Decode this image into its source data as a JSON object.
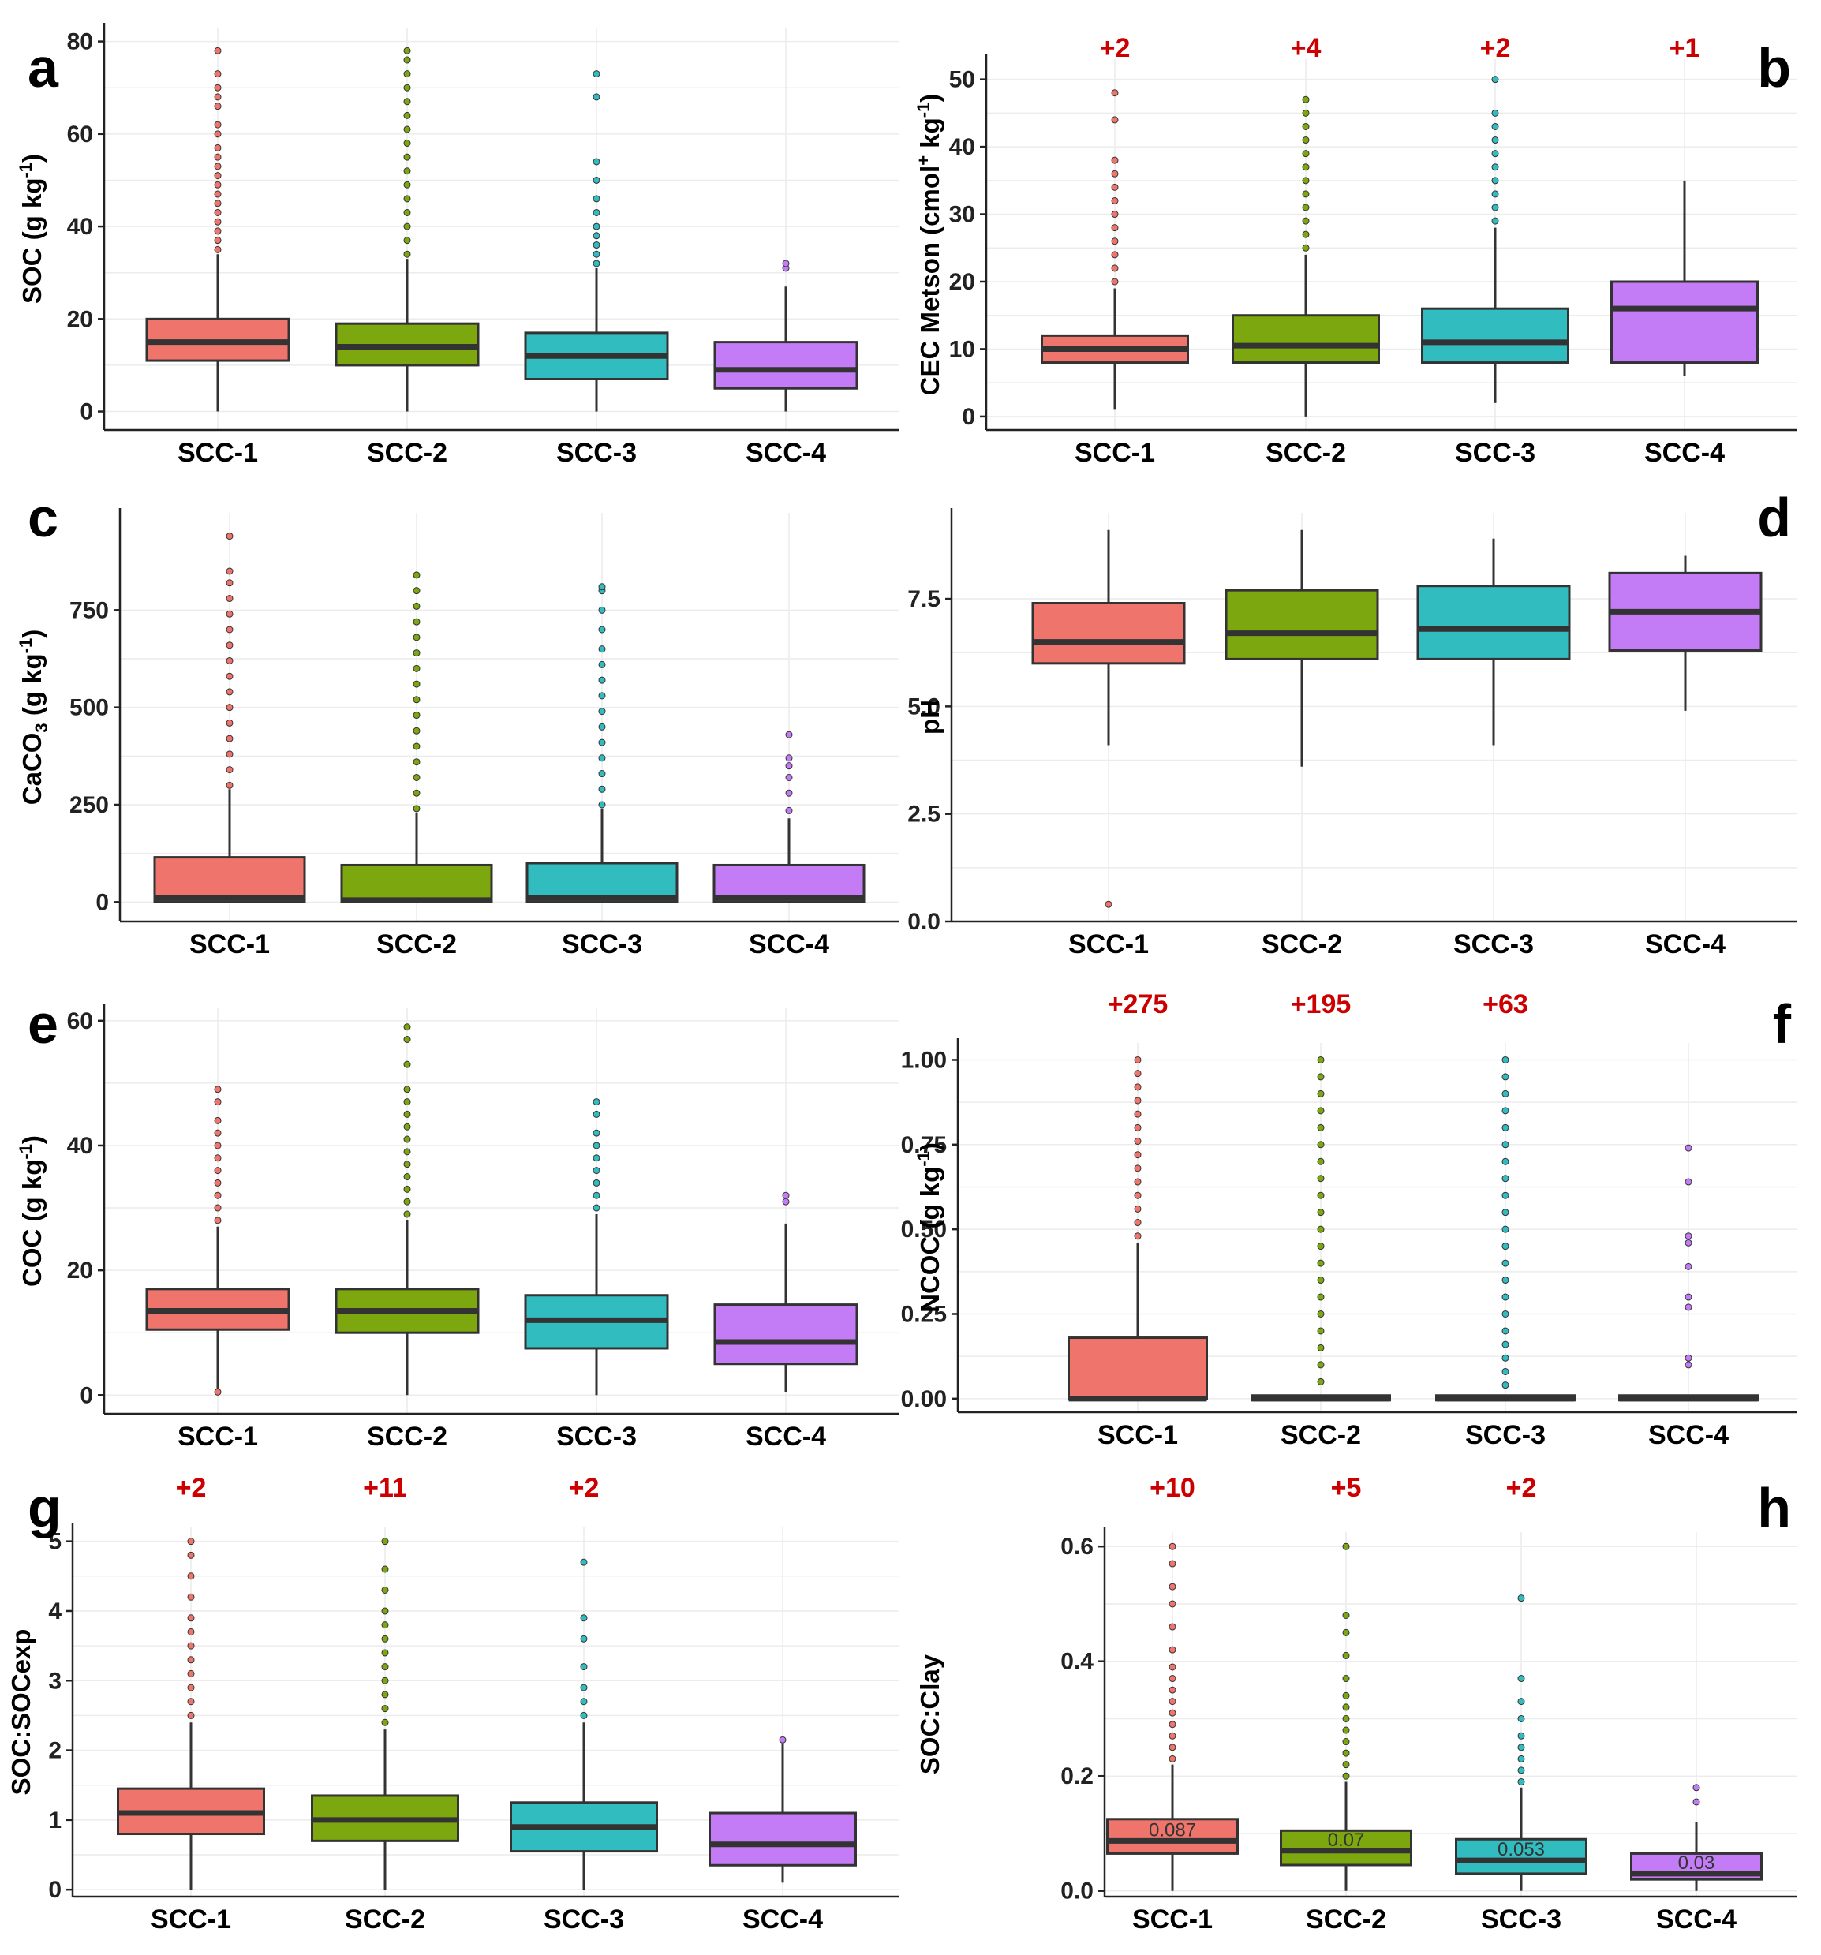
{
  "colors": {
    "SCC-1": "#ef746b",
    "SCC-2": "#7ca70f",
    "SCC-3": "#31bcc0",
    "SCC-4": "#c37cf6",
    "extra_label": "#cc0000"
  },
  "chart_data": [
    {
      "type": "box",
      "panel": "a",
      "ylabel": "SOC (g kg-1)",
      "ylabel_main": "SOC (g kg",
      "ylabel_sup": "-1",
      "ylabel_tail": ")",
      "ylim": [
        -4,
        83
      ],
      "yticks": [
        0,
        20,
        40,
        60,
        80
      ],
      "categories": [
        "SCC-1",
        "SCC-2",
        "SCC-3",
        "SCC-4"
      ],
      "boxes": [
        {
          "min": 0,
          "q1": 11,
          "median": 15,
          "q3": 20,
          "max": 34,
          "outliers": [
            35,
            37,
            39,
            41,
            43,
            45,
            47,
            49,
            51,
            53,
            55,
            57,
            60,
            62,
            66,
            68,
            70,
            73,
            78
          ]
        },
        {
          "min": 0,
          "q1": 10,
          "median": 14,
          "q3": 19,
          "max": 33,
          "outliers": [
            34,
            37,
            40,
            43,
            46,
            49,
            52,
            55,
            58,
            61,
            64,
            67,
            70,
            73,
            76,
            78
          ]
        },
        {
          "min": 0,
          "q1": 7,
          "median": 12,
          "q3": 17,
          "max": 31,
          "outliers": [
            32,
            34,
            36,
            38,
            40,
            43,
            46,
            50,
            54,
            68,
            73
          ]
        },
        {
          "min": 0,
          "q1": 5,
          "median": 9,
          "q3": 15,
          "max": 27,
          "outliers": [
            31,
            32
          ]
        }
      ],
      "extra_labels": [
        "",
        "",
        "",
        ""
      ],
      "median_labels": [
        "",
        "",
        "",
        ""
      ]
    },
    {
      "type": "box",
      "panel": "b",
      "ylabel": "CEC Metson (cmol+ kg-1)",
      "ylabel_main": "CEC Metson (cmol",
      "ylabel_sup": "+",
      "ylabel_mid": " kg",
      "ylabel_sup2": "-1",
      "ylabel_tail": ")",
      "ylim": [
        -2,
        53
      ],
      "yticks": [
        0,
        10,
        20,
        30,
        40,
        50
      ],
      "categories": [
        "SCC-1",
        "SCC-2",
        "SCC-3",
        "SCC-4"
      ],
      "boxes": [
        {
          "min": 1,
          "q1": 8,
          "median": 10,
          "q3": 12,
          "max": 19,
          "outliers": [
            20,
            22,
            24,
            26,
            28,
            30,
            32,
            34,
            36,
            38,
            44,
            48
          ]
        },
        {
          "min": 0,
          "q1": 8,
          "median": 10.5,
          "q3": 15,
          "max": 24,
          "outliers": [
            25,
            27,
            29,
            31,
            33,
            35,
            37,
            39,
            41,
            43,
            45,
            47
          ]
        },
        {
          "min": 2,
          "q1": 8,
          "median": 11,
          "q3": 16,
          "max": 28,
          "outliers": [
            29,
            31,
            33,
            35,
            37,
            39,
            41,
            43,
            45,
            50
          ]
        },
        {
          "min": 6,
          "q1": 8,
          "median": 16,
          "q3": 20,
          "max": 35,
          "outliers": []
        }
      ],
      "extra_labels": [
        "+2",
        "+4",
        "+2",
        "+1"
      ],
      "median_labels": [
        "",
        "",
        "",
        ""
      ]
    },
    {
      "type": "box",
      "panel": "c",
      "ylabel": "CaCO3 (g kg-1)",
      "ylabel_main": "CaCO",
      "ylabel_sub": "3",
      "ylabel_mid": " (g kg",
      "ylabel_sup": "-1",
      "ylabel_tail": ")",
      "ylim": [
        -50,
        1000
      ],
      "yticks": [
        0,
        250,
        500,
        750
      ],
      "ytick_labels": [
        "0",
        "250",
        "500",
        "750"
      ],
      "categories": [
        "SCC-1",
        "SCC-2",
        "SCC-3",
        "SCC-4"
      ],
      "boxes": [
        {
          "min": 0,
          "q1": 0,
          "median": 10,
          "q3": 115,
          "max": 290,
          "outliers": [
            300,
            340,
            380,
            420,
            460,
            500,
            540,
            580,
            620,
            660,
            700,
            740,
            780,
            820,
            850,
            940
          ]
        },
        {
          "min": 0,
          "q1": 0,
          "median": 5,
          "q3": 95,
          "max": 230,
          "outliers": [
            240,
            280,
            320,
            360,
            400,
            440,
            480,
            520,
            560,
            600,
            640,
            680,
            720,
            760,
            800,
            840
          ]
        },
        {
          "min": 0,
          "q1": 0,
          "median": 10,
          "q3": 100,
          "max": 240,
          "outliers": [
            250,
            290,
            330,
            370,
            410,
            450,
            490,
            530,
            570,
            610,
            650,
            700,
            750,
            800,
            810
          ]
        },
        {
          "min": 0,
          "q1": 0,
          "median": 10,
          "q3": 95,
          "max": 215,
          "outliers": [
            235,
            280,
            320,
            350,
            370,
            430
          ]
        }
      ],
      "extra_labels": [
        "",
        "",
        "",
        ""
      ],
      "median_labels": [
        "",
        "",
        "",
        ""
      ]
    },
    {
      "type": "box",
      "panel": "d",
      "ylabel": "pH",
      "ylabel_main": "pH",
      "ylim": [
        0,
        9.5
      ],
      "yticks": [
        0,
        2.5,
        5,
        7.5
      ],
      "ytick_labels": [
        "0.0",
        "2.5",
        "5.0",
        "7.5"
      ],
      "categories": [
        "SCC-1",
        "SCC-2",
        "SCC-3",
        "SCC-4"
      ],
      "boxes": [
        {
          "min": 4.1,
          "q1": 6.0,
          "median": 6.5,
          "q3": 7.4,
          "max": 9.1,
          "outliers": [
            0.4
          ]
        },
        {
          "min": 3.6,
          "q1": 6.1,
          "median": 6.7,
          "q3": 7.7,
          "max": 9.1,
          "outliers": []
        },
        {
          "min": 4.1,
          "q1": 6.1,
          "median": 6.8,
          "q3": 7.8,
          "max": 8.9,
          "outliers": []
        },
        {
          "min": 4.9,
          "q1": 6.3,
          "median": 7.2,
          "q3": 8.1,
          "max": 8.5,
          "outliers": []
        }
      ],
      "extra_labels": [
        "",
        "",
        "",
        ""
      ],
      "median_labels": [
        "",
        "",
        "",
        ""
      ]
    },
    {
      "type": "box",
      "panel": "e",
      "ylabel": "COC (g kg-1)",
      "ylabel_main": "COC (g kg",
      "ylabel_sup": "-1",
      "ylabel_tail": ")",
      "ylim": [
        -3,
        62
      ],
      "yticks": [
        0,
        20,
        40,
        60
      ],
      "categories": [
        "SCC-1",
        "SCC-2",
        "SCC-3",
        "SCC-4"
      ],
      "boxes": [
        {
          "min": 0,
          "q1": 10.5,
          "median": 13.5,
          "q3": 17,
          "max": 27,
          "outliers": [
            0.5,
            28,
            30,
            32,
            34,
            36,
            38,
            40,
            42,
            44,
            47,
            49
          ]
        },
        {
          "min": 0,
          "q1": 10,
          "median": 13.5,
          "q3": 17,
          "max": 28,
          "outliers": [
            29,
            31,
            33,
            35,
            37,
            39,
            41,
            43,
            45,
            47,
            49,
            53,
            57,
            59
          ]
        },
        {
          "min": 0,
          "q1": 7.5,
          "median": 12,
          "q3": 16,
          "max": 29,
          "outliers": [
            30,
            32,
            34,
            36,
            38,
            40,
            42,
            45,
            47
          ]
        },
        {
          "min": 0.5,
          "q1": 5,
          "median": 8.5,
          "q3": 14.5,
          "max": 27.5,
          "outliers": [
            31,
            32
          ]
        }
      ],
      "extra_labels": [
        "",
        "",
        "",
        ""
      ],
      "median_labels": [
        "",
        "",
        "",
        ""
      ]
    },
    {
      "type": "box",
      "panel": "f",
      "ylabel": "NCOC (g kg-1)",
      "ylabel_main": "NCOC (g kg",
      "ylabel_sup": "-1",
      "ylabel_tail": ")",
      "ylim": [
        -0.04,
        1.05
      ],
      "yticks": [
        0,
        0.25,
        0.5,
        0.75,
        1
      ],
      "ytick_labels": [
        "0.00",
        "0.25",
        "0.50",
        "0.75",
        "1.00"
      ],
      "categories": [
        "SCC-1",
        "SCC-2",
        "SCC-3",
        "SCC-4"
      ],
      "boxes": [
        {
          "min": 0,
          "q1": 0,
          "median": 0,
          "q3": 0.18,
          "max": 0.46,
          "outliers": [
            0.48,
            0.52,
            0.56,
            0.6,
            0.64,
            0.68,
            0.72,
            0.76,
            0.8,
            0.84,
            0.88,
            0.92,
            0.96,
            1.0
          ]
        },
        {
          "min": 0,
          "q1": 0,
          "median": 0,
          "q3": 0.005,
          "max": 0.01,
          "outliers": [
            0.05,
            0.1,
            0.15,
            0.2,
            0.25,
            0.3,
            0.35,
            0.4,
            0.45,
            0.5,
            0.55,
            0.6,
            0.65,
            0.7,
            0.75,
            0.8,
            0.85,
            0.9,
            0.95,
            1.0
          ]
        },
        {
          "min": 0,
          "q1": 0,
          "median": 0,
          "q3": 0.005,
          "max": 0.01,
          "outliers": [
            0.04,
            0.08,
            0.12,
            0.16,
            0.2,
            0.25,
            0.3,
            0.35,
            0.4,
            0.45,
            0.5,
            0.55,
            0.6,
            0.65,
            0.7,
            0.75,
            0.8,
            0.85,
            0.9,
            0.95,
            1.0
          ]
        },
        {
          "min": 0,
          "q1": 0,
          "median": 0,
          "q3": 0.005,
          "max": 0.01,
          "outliers": [
            0.1,
            0.12,
            0.27,
            0.3,
            0.39,
            0.46,
            0.48,
            0.64,
            0.74
          ]
        }
      ],
      "extra_labels": [
        "+275",
        "+195",
        "+63",
        ""
      ],
      "median_labels": [
        "",
        "",
        "",
        ""
      ]
    },
    {
      "type": "box",
      "panel": "g",
      "ylabel": "SOC:SOCexp",
      "ylabel_main": "SOC:SOCexp",
      "ylim": [
        -0.1,
        5.2
      ],
      "yticks": [
        0,
        1,
        2,
        3,
        4,
        5
      ],
      "categories": [
        "SCC-1",
        "SCC-2",
        "SCC-3",
        "SCC-4"
      ],
      "boxes": [
        {
          "min": 0,
          "q1": 0.8,
          "median": 1.1,
          "q3": 1.45,
          "max": 2.4,
          "outliers": [
            2.5,
            2.7,
            2.9,
            3.1,
            3.3,
            3.5,
            3.7,
            3.9,
            4.2,
            4.5,
            4.8,
            5.0
          ]
        },
        {
          "min": 0,
          "q1": 0.7,
          "median": 1.0,
          "q3": 1.35,
          "max": 2.3,
          "outliers": [
            2.4,
            2.6,
            2.8,
            3.0,
            3.2,
            3.4,
            3.6,
            3.8,
            4.0,
            4.3,
            4.6,
            5.0
          ]
        },
        {
          "min": 0,
          "q1": 0.55,
          "median": 0.9,
          "q3": 1.25,
          "max": 2.4,
          "outliers": [
            2.5,
            2.7,
            2.9,
            3.2,
            3.6,
            3.9,
            4.7
          ]
        },
        {
          "min": 0.1,
          "q1": 0.35,
          "median": 0.65,
          "q3": 1.1,
          "max": 2.1,
          "outliers": [
            2.15
          ]
        }
      ],
      "extra_labels": [
        "+2",
        "+11",
        "+2",
        ""
      ],
      "median_labels": [
        "",
        "",
        "",
        ""
      ]
    },
    {
      "type": "box",
      "panel": "h",
      "ylabel": "SOC:Clay",
      "ylabel_main": "SOC:Clay",
      "ylim": [
        -0.01,
        0.625
      ],
      "yticks": [
        0,
        0.2,
        0.4,
        0.6
      ],
      "ytick_labels": [
        "0.0",
        "0.2",
        "0.4",
        "0.6"
      ],
      "categories": [
        "SCC-1",
        "SCC-2",
        "SCC-3",
        "SCC-4"
      ],
      "boxes": [
        {
          "min": 0,
          "q1": 0.065,
          "median": 0.087,
          "q3": 0.125,
          "max": 0.22,
          "outliers": [
            0.23,
            0.25,
            0.27,
            0.29,
            0.31,
            0.33,
            0.35,
            0.37,
            0.39,
            0.42,
            0.46,
            0.5,
            0.53,
            0.57,
            0.6
          ]
        },
        {
          "min": 0,
          "q1": 0.045,
          "median": 0.07,
          "q3": 0.105,
          "max": 0.19,
          "outliers": [
            0.2,
            0.22,
            0.24,
            0.26,
            0.28,
            0.3,
            0.32,
            0.34,
            0.37,
            0.41,
            0.45,
            0.48,
            0.6
          ]
        },
        {
          "min": 0,
          "q1": 0.03,
          "median": 0.053,
          "q3": 0.09,
          "max": 0.18,
          "outliers": [
            0.19,
            0.21,
            0.23,
            0.25,
            0.27,
            0.3,
            0.33,
            0.37,
            0.51
          ]
        },
        {
          "min": 0,
          "q1": 0.02,
          "median": 0.03,
          "q3": 0.065,
          "max": 0.12,
          "outliers": [
            0.155,
            0.18
          ]
        }
      ],
      "extra_labels": [
        "+10",
        "+5",
        "+2",
        ""
      ],
      "median_labels": [
        "0.087",
        "0.07",
        "0.053",
        "0.03"
      ]
    }
  ]
}
